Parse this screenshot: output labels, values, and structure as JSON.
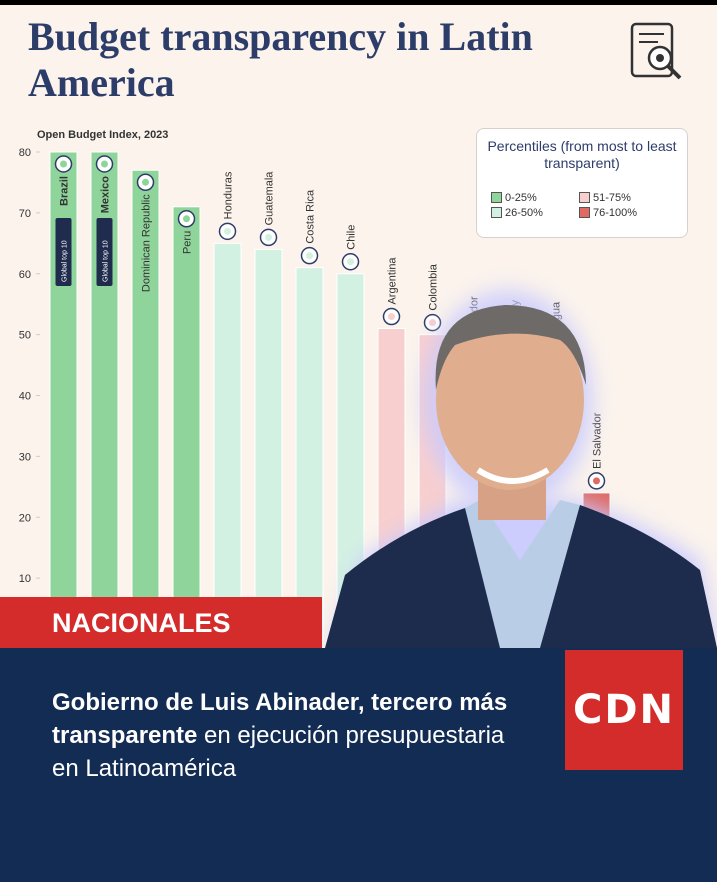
{
  "chart_data": {
    "type": "bar",
    "title": "Budget transparency in Latin America",
    "axis_label": "Open Budget Index, 2023",
    "categories": [
      "Brazil",
      "Mexico",
      "Dominican Republic",
      "Peru",
      "Honduras",
      "Guatemala",
      "Costa Rica",
      "Chile",
      "Argentina",
      "Colombia",
      "cuador",
      "aguay",
      "ragua",
      "El Salvador"
    ],
    "values": [
      80,
      80,
      77,
      71,
      65,
      64,
      61,
      60,
      51,
      50,
      null,
      null,
      null,
      24
    ],
    "colors": [
      "#8fd49a",
      "#8fd49a",
      "#8fd49a",
      "#8fd49a",
      "#d3f1e2",
      "#d3f1e2",
      "#d3f1e2",
      "#d3f1e2",
      "#f8cfcf",
      "#f8cfcf",
      "#f8cfcf",
      "#f8cfcf",
      "#f8cfcf",
      "#e06a62"
    ],
    "annotations": [
      "Global top 10",
      "Global top 10"
    ],
    "ylim": [
      0,
      80
    ],
    "yticks": [
      10,
      20,
      30,
      40,
      50,
      60,
      70,
      80
    ],
    "legend": {
      "title": "Percentiles (from most to least transparent)",
      "items": [
        {
          "label": "0-25%",
          "color": "#8fd49a"
        },
        {
          "label": "26-50%",
          "color": "#d3f1e2"
        },
        {
          "label": "51-75%",
          "color": "#f8cfcf"
        },
        {
          "label": "76-100%",
          "color": "#e06a62"
        }
      ]
    }
  },
  "section": "NACIONALES",
  "logo": "CDN",
  "headline": {
    "bold": "Gobierno de Luis Abinader, tercero más transparente",
    "regular": " en ejecución presupuestaria en Latinoamérica"
  }
}
